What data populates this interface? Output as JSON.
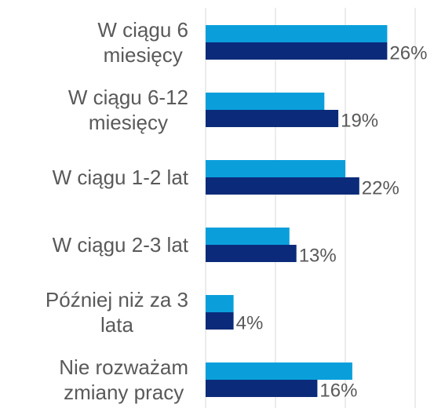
{
  "chart_data": {
    "type": "hbar",
    "categories": [
      "W ciągu 6\nmiesięcy",
      "W ciągu 6-12\nmiesięcy",
      "W ciągu 1-2 lat",
      "W ciągu 2-3 lat",
      "Później niż za 3\nlata",
      "Nie rozważam\nzmiany pracy"
    ],
    "series": [
      {
        "color": "#0a9fdb",
        "values": [
          26,
          17,
          20,
          12,
          4,
          21
        ]
      },
      {
        "color": "#0b2b7a",
        "values": [
          26,
          19,
          22,
          13,
          4,
          16
        ],
        "value_labels": [
          "26%",
          "19%",
          "22%",
          "13%",
          "4%",
          "16%"
        ]
      }
    ],
    "xlim": [
      0,
      30
    ],
    "xticks": [
      0,
      10,
      20,
      30
    ],
    "grid": true
  }
}
